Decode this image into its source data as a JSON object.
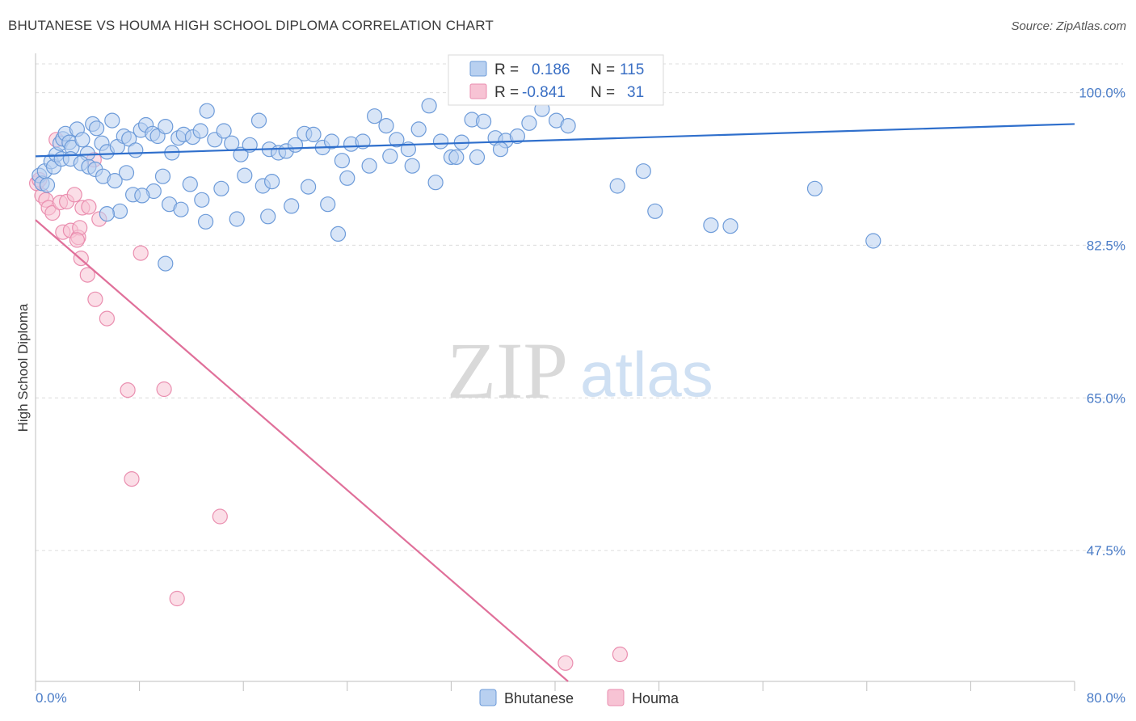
{
  "title": "BHUTANESE VS HOUMA HIGH SCHOOL DIPLOMA CORRELATION CHART",
  "source": "Source: ZipAtlas.com",
  "watermark": {
    "zip": "ZIP",
    "atlas": "atlas"
  },
  "legend": {
    "rows": [
      {
        "r_label": "R =",
        "r_value": "0.186",
        "n_label": "N =",
        "n_value": "115"
      },
      {
        "r_label": "R =",
        "r_value": "-0.841",
        "n_label": "N =",
        "n_value": "31"
      }
    ]
  },
  "bottom_legend": [
    "Bhutanese",
    "Houma"
  ],
  "colors": {
    "bhutanese_fill": "#b8d0f0",
    "bhutanese_stroke": "#6d9bd9",
    "bhutanese_line": "#2f6fcc",
    "houma_fill": "#f7c3d4",
    "houma_stroke": "#ea8eaf",
    "houma_line": "#e0709a",
    "grid": "#dcdcdc",
    "tick_label": "#4a7cc7"
  },
  "chart_data": {
    "type": "scatter",
    "title": "BHUTANESE VS HOUMA HIGH SCHOOL DIPLOMA CORRELATION CHART",
    "xlabel": "",
    "ylabel": "High School Diploma",
    "xlim": [
      0,
      80
    ],
    "ylim": [
      32.5,
      104.5
    ],
    "x_tick_labels": [
      "0.0%",
      "80.0%"
    ],
    "y_ticks": [
      100,
      82.5,
      65,
      47.5
    ],
    "y_tick_labels": [
      "100.0%",
      "82.5%",
      "65.0%",
      "47.5%"
    ],
    "grid": true,
    "legend_placement": "top-center",
    "series": [
      {
        "name": "Bhutanese",
        "r": 0.186,
        "n": 115,
        "trend": {
          "x": [
            0,
            80
          ],
          "y": [
            92.7,
            96.4
          ]
        },
        "points": [
          [
            0.3,
            90.5
          ],
          [
            0.5,
            89.6
          ],
          [
            0.7,
            91.0
          ],
          [
            0.9,
            89.4
          ],
          [
            1.2,
            92.1
          ],
          [
            1.4,
            91.5
          ],
          [
            1.6,
            92.9
          ],
          [
            1.9,
            94.2
          ],
          [
            2.1,
            94.7
          ],
          [
            2.3,
            95.3
          ],
          [
            2.6,
            94.3
          ],
          [
            2.8,
            93.7
          ],
          [
            3.2,
            95.8
          ],
          [
            3.6,
            94.6
          ],
          [
            4.0,
            93.0
          ],
          [
            4.4,
            96.4
          ],
          [
            4.7,
            95.9
          ],
          [
            5.1,
            94.2
          ],
          [
            5.5,
            93.2
          ],
          [
            5.9,
            96.8
          ],
          [
            6.3,
            93.8
          ],
          [
            6.8,
            95.0
          ],
          [
            7.2,
            94.7
          ],
          [
            7.7,
            93.4
          ],
          [
            8.1,
            95.7
          ],
          [
            8.5,
            96.3
          ],
          [
            9.0,
            95.3
          ],
          [
            9.4,
            95.0
          ],
          [
            10.0,
            96.1
          ],
          [
            10.5,
            93.1
          ],
          [
            11.0,
            94.8
          ],
          [
            11.4,
            95.2
          ],
          [
            12.1,
            94.9
          ],
          [
            12.7,
            95.6
          ],
          [
            13.2,
            97.9
          ],
          [
            13.8,
            94.6
          ],
          [
            14.5,
            95.6
          ],
          [
            15.1,
            94.2
          ],
          [
            15.8,
            92.9
          ],
          [
            16.5,
            94.0
          ],
          [
            17.2,
            96.8
          ],
          [
            18.0,
            93.5
          ],
          [
            18.7,
            93.1
          ],
          [
            19.3,
            93.3
          ],
          [
            20.0,
            94.0
          ],
          [
            20.7,
            95.3
          ],
          [
            21.4,
            95.2
          ],
          [
            22.1,
            93.7
          ],
          [
            22.8,
            94.4
          ],
          [
            23.6,
            92.2
          ],
          [
            24.3,
            94.1
          ],
          [
            25.2,
            94.4
          ],
          [
            26.1,
            97.3
          ],
          [
            27.0,
            96.2
          ],
          [
            27.8,
            94.6
          ],
          [
            28.7,
            93.5
          ],
          [
            29.5,
            95.8
          ],
          [
            30.3,
            98.5
          ],
          [
            31.2,
            94.4
          ],
          [
            32.0,
            92.6
          ],
          [
            32.8,
            94.3
          ],
          [
            33.6,
            96.9
          ],
          [
            34.5,
            96.7
          ],
          [
            35.4,
            94.8
          ],
          [
            36.2,
            94.5
          ],
          [
            37.1,
            95.0
          ],
          [
            38.0,
            96.5
          ],
          [
            39.0,
            98.1
          ],
          [
            40.1,
            96.8
          ],
          [
            41.0,
            96.2
          ],
          [
            7.0,
            90.8
          ],
          [
            9.1,
            88.7
          ],
          [
            10.3,
            87.2
          ],
          [
            11.9,
            89.5
          ],
          [
            12.8,
            87.7
          ],
          [
            14.3,
            89.0
          ],
          [
            16.1,
            90.5
          ],
          [
            17.5,
            89.3
          ],
          [
            18.2,
            89.8
          ],
          [
            19.7,
            87.0
          ],
          [
            21.0,
            89.2
          ],
          [
            22.5,
            87.2
          ],
          [
            24.0,
            90.2
          ],
          [
            25.7,
            91.6
          ],
          [
            27.3,
            92.7
          ],
          [
            29.0,
            91.6
          ],
          [
            30.8,
            89.7
          ],
          [
            32.4,
            92.6
          ],
          [
            34.0,
            92.6
          ],
          [
            35.8,
            93.5
          ],
          [
            2.0,
            92.4
          ],
          [
            2.7,
            92.4
          ],
          [
            3.5,
            91.9
          ],
          [
            4.1,
            91.5
          ],
          [
            4.6,
            91.2
          ],
          [
            5.2,
            90.4
          ],
          [
            6.1,
            89.9
          ],
          [
            7.5,
            88.3
          ],
          [
            8.2,
            88.2
          ],
          [
            9.8,
            90.4
          ],
          [
            11.2,
            86.6
          ],
          [
            13.1,
            85.2
          ],
          [
            15.5,
            85.5
          ],
          [
            17.9,
            85.8
          ],
          [
            23.3,
            83.8
          ],
          [
            6.5,
            86.4
          ],
          [
            5.5,
            86.1
          ],
          [
            10.0,
            80.4
          ],
          [
            47.7,
            86.4
          ],
          [
            52.0,
            84.8
          ],
          [
            53.5,
            84.7
          ],
          [
            60.0,
            89.0
          ],
          [
            64.5,
            83.0
          ],
          [
            44.8,
            89.3
          ],
          [
            46.8,
            91.0
          ]
        ]
      },
      {
        "name": "Houma",
        "r": -0.841,
        "n": 31,
        "trend": {
          "x": [
            0,
            41
          ],
          "y": [
            85.4,
            32.5
          ]
        },
        "points": [
          [
            0.1,
            89.6
          ],
          [
            0.3,
            90.0
          ],
          [
            0.5,
            88.2
          ],
          [
            0.8,
            87.7
          ],
          [
            1.0,
            86.8
          ],
          [
            1.3,
            86.2
          ],
          [
            1.6,
            94.6
          ],
          [
            1.9,
            87.4
          ],
          [
            2.1,
            84.0
          ],
          [
            2.4,
            87.5
          ],
          [
            2.7,
            84.2
          ],
          [
            3.0,
            88.3
          ],
          [
            3.3,
            83.4
          ],
          [
            3.6,
            86.8
          ],
          [
            4.1,
            86.9
          ],
          [
            4.5,
            92.3
          ],
          [
            4.9,
            85.5
          ],
          [
            3.4,
            84.5
          ],
          [
            3.2,
            83.1
          ],
          [
            3.5,
            81.0
          ],
          [
            4.0,
            79.1
          ],
          [
            4.6,
            76.3
          ],
          [
            5.5,
            74.1
          ],
          [
            8.1,
            81.6
          ],
          [
            7.1,
            65.9
          ],
          [
            9.9,
            66.0
          ],
          [
            7.4,
            55.7
          ],
          [
            14.2,
            51.4
          ],
          [
            10.9,
            42.0
          ],
          [
            40.8,
            34.6
          ],
          [
            45.0,
            35.6
          ]
        ]
      }
    ]
  }
}
